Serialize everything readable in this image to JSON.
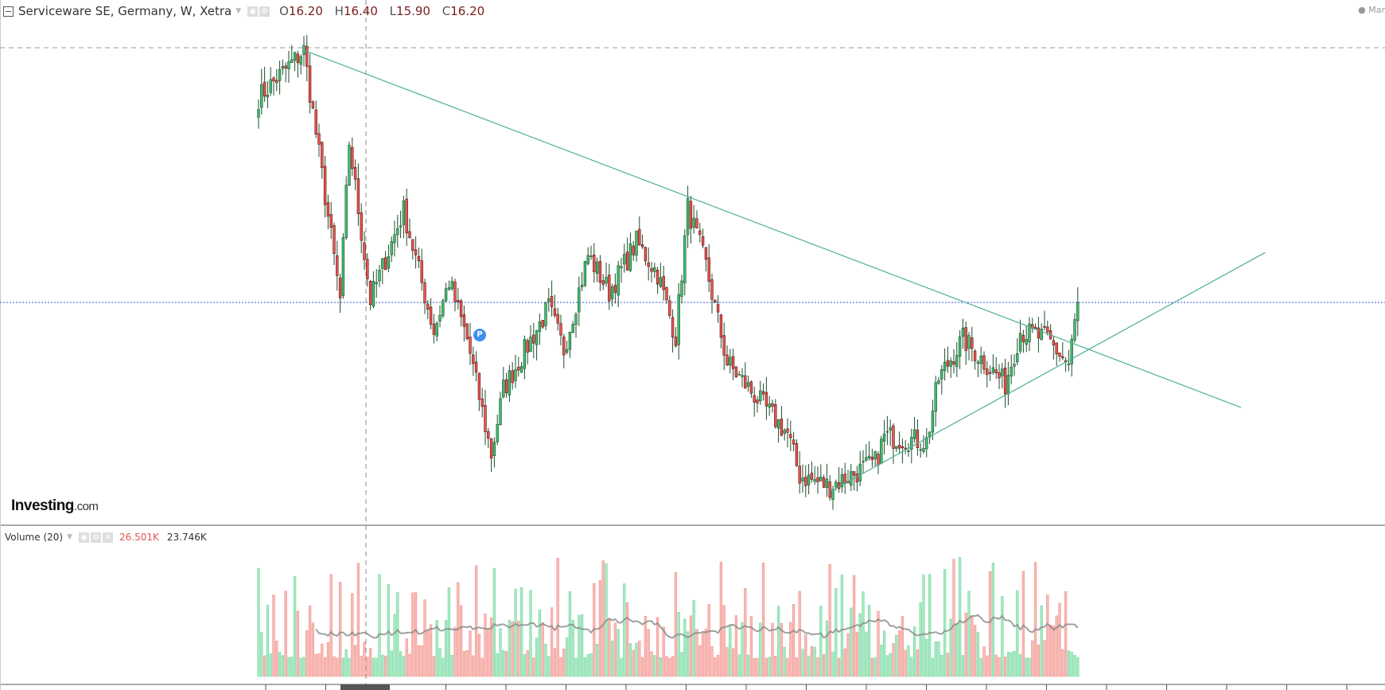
{
  "header": {
    "title": "Serviceware SE, Germany, W, Xetra",
    "open_label": "O",
    "open": "16.20",
    "high_label": "H",
    "high": "16.40",
    "low_label": "L",
    "low": "15.90",
    "close_label": "C",
    "close": "16.20"
  },
  "top_right_label": "Mar",
  "logo": {
    "main": "Investing",
    "suffix": ".com"
  },
  "volume": {
    "title": "Volume (20)",
    "last": "26.501K",
    "ma": "23.746K"
  },
  "marker": {
    "label": "P"
  },
  "colors": {
    "up": "#3fbf6f",
    "down": "#e8574f",
    "up_vol": "#a6e8c2",
    "down_vol": "#f8b9b4",
    "trend": "#4caf93",
    "price_line": "#3355dd"
  },
  "chart_data": {
    "type": "candlestick",
    "timeframe": "W",
    "weeks": 272,
    "last_close": 16.2,
    "price_anchors": [
      [
        0,
        24.0
      ],
      [
        15,
        25.8
      ],
      [
        27,
        16.3
      ],
      [
        30,
        22.3
      ],
      [
        37,
        16.3
      ],
      [
        48,
        19.7
      ],
      [
        58,
        15.1
      ],
      [
        63,
        17.0
      ],
      [
        69,
        14.8
      ],
      [
        77,
        10.4
      ],
      [
        81,
        12.9
      ],
      [
        96,
        16.0
      ],
      [
        101,
        14.4
      ],
      [
        109,
        18.0
      ],
      [
        116,
        16.6
      ],
      [
        125,
        18.5
      ],
      [
        132,
        17.3
      ],
      [
        138,
        14.9
      ],
      [
        142,
        19.8
      ],
      [
        148,
        17.6
      ],
      [
        155,
        13.9
      ],
      [
        166,
        12.4
      ],
      [
        175,
        11.2
      ],
      [
        179,
        9.6
      ],
      [
        189,
        9.2
      ],
      [
        204,
        10.1
      ],
      [
        207,
        11.1
      ],
      [
        221,
        10.9
      ],
      [
        225,
        13.3
      ],
      [
        233,
        14.8
      ],
      [
        247,
        13.1
      ],
      [
        252,
        15.1
      ],
      [
        261,
        14.8
      ],
      [
        268,
        13.8
      ],
      [
        271,
        16.2
      ]
    ],
    "trendlines": [
      {
        "from": [
          15,
          25.8
        ],
        "to": [
          325,
          12.2
        ]
      },
      {
        "from": [
          189,
          9.0
        ],
        "to": [
          333,
          18.1
        ]
      }
    ],
    "horizontal_lines": [
      16.2
    ],
    "volume_ma_period": 20
  }
}
